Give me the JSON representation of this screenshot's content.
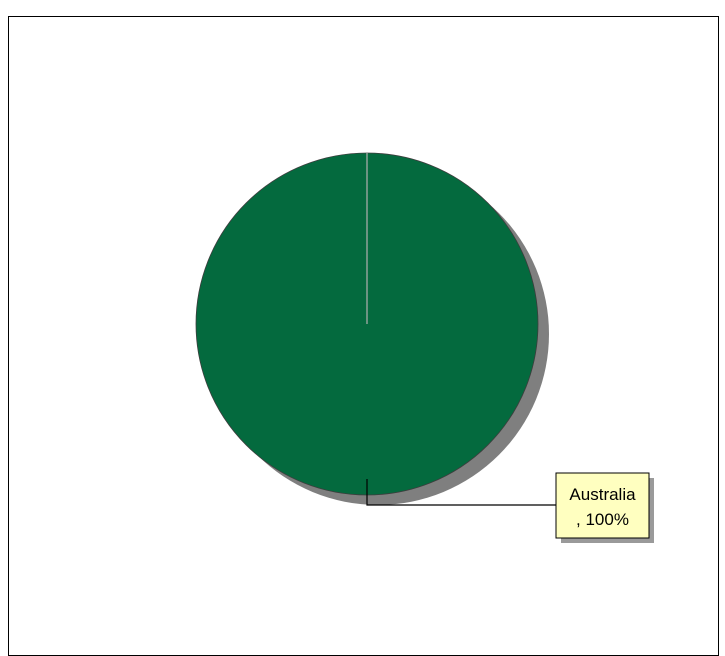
{
  "chart_data": {
    "type": "pie",
    "title": "",
    "categories": [
      "Australia"
    ],
    "values": [
      100
    ],
    "data_labels": [
      [
        "Australia",
        ", 100%"
      ]
    ],
    "colors": {
      "slice": "#046a3e",
      "shadow": "#7f7f7f",
      "label_box": "#ffffc0",
      "label_shadow": "#9a9a9a"
    }
  }
}
